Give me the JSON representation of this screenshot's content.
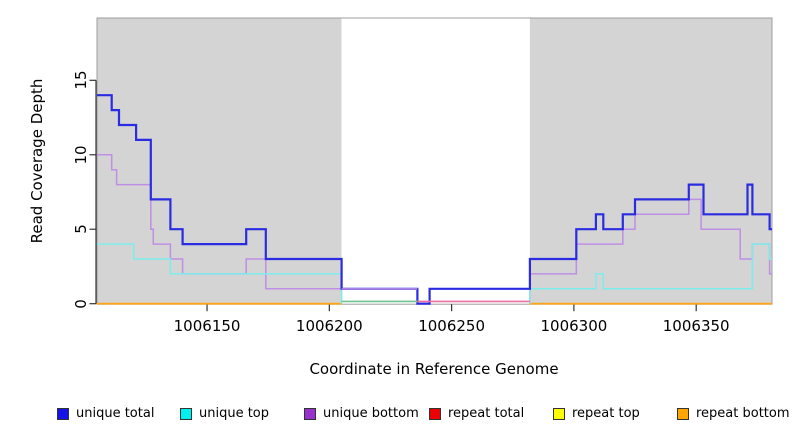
{
  "chart_data": {
    "type": "line",
    "subtype": "step-coverage",
    "title": "",
    "xlabel": "Coordinate in Reference Genome",
    "ylabel": "Read Coverage Depth",
    "xlim": [
      1006105,
      1006381
    ],
    "ylim": [
      0,
      19.2
    ],
    "xticks": [
      1006150,
      1006200,
      1006250,
      1006300,
      1006350
    ],
    "yticks": [
      0,
      5,
      10,
      15
    ],
    "grid": false,
    "legend_position": "bottom",
    "regions": [
      {
        "name": "repeat-region-left",
        "x0": 1006105,
        "x1": 1006205,
        "color": "#d4d4d4"
      },
      {
        "name": "unique-region-gap",
        "x0": 1006205,
        "x1": 1006282,
        "color": "#ffffff"
      },
      {
        "name": "repeat-region-right",
        "x0": 1006282,
        "x1": 1006381,
        "color": "#d4d4d4"
      }
    ],
    "series": [
      {
        "name": "repeat total",
        "line_color": "#e00000",
        "line_width": 1.5,
        "segments": [
          [
            [
              1006105,
              0
            ],
            [
              1006205,
              0
            ]
          ],
          [
            [
              1006282,
              0
            ],
            [
              1006381,
              0
            ]
          ]
        ]
      },
      {
        "name": "repeat top",
        "line_color": "#f5f500",
        "line_width": 1.5,
        "segments": [
          [
            [
              1006105,
              0
            ],
            [
              1006205,
              0
            ]
          ],
          [
            [
              1006282,
              0
            ],
            [
              1006381,
              0
            ]
          ]
        ]
      },
      {
        "name": "repeat bottom",
        "line_color": "#ffa519",
        "line_width": 1.8,
        "segments": [
          [
            [
              1006105,
              0
            ],
            [
              1006205,
              0
            ]
          ],
          [
            [
              1006282,
              0
            ],
            [
              1006381,
              0
            ]
          ]
        ]
      },
      {
        "name": "unique bottom",
        "line_color": "#be8fe4",
        "line_width": 1.5,
        "segments": [
          [
            [
              1006105,
              10
            ],
            [
              1006111,
              9
            ],
            [
              1006113,
              8
            ],
            [
              1006127,
              5
            ],
            [
              1006128,
              4
            ],
            [
              1006135,
              3
            ],
            [
              1006140,
              2
            ],
            [
              1006166,
              3
            ],
            [
              1006174,
              1
            ],
            [
              1006236,
              0
            ]
          ],
          [
            [
              1006282,
              0
            ],
            [
              1006282,
              2
            ],
            [
              1006301,
              4
            ],
            [
              1006320,
              5
            ],
            [
              1006325,
              6
            ],
            [
              1006347,
              7
            ],
            [
              1006352,
              5
            ],
            [
              1006368,
              3
            ],
            [
              1006373,
              4
            ],
            [
              1006380,
              2
            ],
            [
              1006381,
              2
            ]
          ]
        ]
      },
      {
        "name": "unique top",
        "line_color": "#7dedec",
        "line_width": 1.5,
        "segments": [
          [
            [
              1006105,
              4
            ],
            [
              1006120,
              3
            ],
            [
              1006135,
              2
            ],
            [
              1006205,
              0
            ]
          ],
          [
            [
              1006282,
              0
            ],
            [
              1006282,
              1
            ],
            [
              1006309,
              2
            ],
            [
              1006312,
              1
            ],
            [
              1006373,
              4
            ],
            [
              1006380,
              3
            ],
            [
              1006381,
              3
            ]
          ]
        ]
      },
      {
        "name": "unique total",
        "line_color": "#2b2be2",
        "line_width": 2.2,
        "segments": [
          [
            [
              1006105,
              14
            ],
            [
              1006111,
              13
            ],
            [
              1006114,
              12
            ],
            [
              1006121,
              11
            ],
            [
              1006127,
              7
            ],
            [
              1006135,
              5
            ],
            [
              1006140,
              4
            ],
            [
              1006166,
              5
            ],
            [
              1006174,
              3
            ],
            [
              1006205,
              1
            ],
            [
              1006236,
              0
            ],
            [
              1006241,
              1
            ],
            [
              1006282,
              3
            ],
            [
              1006301,
              5
            ],
            [
              1006309,
              6
            ],
            [
              1006312,
              5
            ],
            [
              1006320,
              6
            ],
            [
              1006325,
              7
            ],
            [
              1006347,
              8
            ],
            [
              1006353,
              6
            ],
            [
              1006371,
              8
            ],
            [
              1006373,
              6
            ],
            [
              1006380,
              5
            ],
            [
              1006381,
              5
            ]
          ]
        ]
      }
    ],
    "overlays": [
      {
        "name": "zero-overlap-teal",
        "color": "#6ec58f",
        "x0": 1006205,
        "x1": 1006236,
        "value": 0.15,
        "width": 1.6
      },
      {
        "name": "zero-overlap-pink",
        "color": "#eb6fa0",
        "x0": 1006236,
        "x1": 1006282,
        "value": 0.15,
        "width": 1.6
      },
      {
        "name": "one-overlap-violet",
        "color": "#be8fe4",
        "x0": 1006205,
        "x1": 1006236,
        "value": 1,
        "width": 1.3
      }
    ]
  },
  "legend": {
    "items": [
      {
        "label": "unique total",
        "color": "#1414e6"
      },
      {
        "label": "unique top",
        "color": "#00f0f0"
      },
      {
        "label": "unique bottom",
        "color": "#9932cc"
      },
      {
        "label": "repeat total",
        "color": "#ee0000"
      },
      {
        "label": "repeat top",
        "color": "#ffff00"
      },
      {
        "label": "repeat bottom",
        "color": "#ffa500"
      }
    ]
  }
}
